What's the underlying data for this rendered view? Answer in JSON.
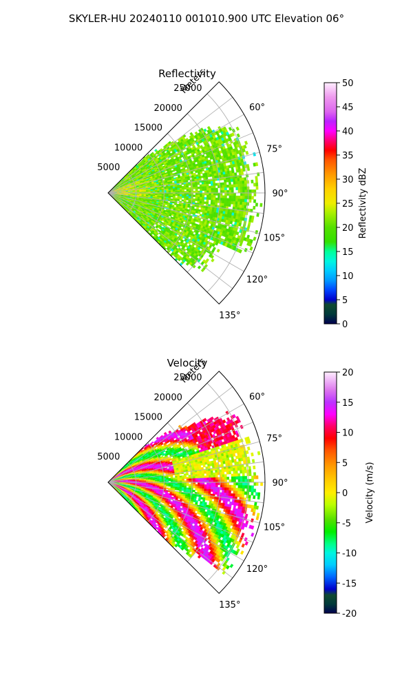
{
  "figure": {
    "title": "SKYLER-HU  20240110  001010.900 UTC Elevation 06°"
  },
  "chart_data": [
    {
      "type": "heatmap",
      "projection": "polar-sector",
      "title": "Reflectivity",
      "range_label": "Meters",
      "range_ticks": [
        "5000",
        "10000",
        "15000",
        "20000",
        "25000"
      ],
      "range_tick_values": [
        5000,
        10000,
        15000,
        20000,
        25000
      ],
      "range_max": 28000,
      "azimuth_min": 45,
      "azimuth_max": 135,
      "azimuth_ticks": [
        "60°",
        "75°",
        "90°",
        "105°",
        "120°",
        "135°"
      ],
      "azimuth_tick_values": [
        60,
        75,
        90,
        105,
        120,
        135
      ],
      "grid": true,
      "colorbar": {
        "label": "Reflectivity dBZ",
        "min": 0,
        "max": 50,
        "ticks": [
          "0",
          "5",
          "10",
          "15",
          "20",
          "25",
          "30",
          "35",
          "40",
          "45",
          "50"
        ],
        "tick_values": [
          0,
          5,
          10,
          15,
          20,
          25,
          30,
          35,
          40,
          45,
          50
        ]
      },
      "field_description": "Weak echoes mostly 18-24 dBZ (green) filling most of the sector to ~25 km; stronger 25-30 dBZ (yellow) near the radar along 75-95°; cyan speckle (10-15 dBZ) at the edges."
    },
    {
      "type": "heatmap",
      "projection": "polar-sector",
      "title": "Velocity",
      "range_label": "Meters",
      "range_ticks": [
        "5000",
        "10000",
        "15000",
        "20000",
        "25000"
      ],
      "range_tick_values": [
        5000,
        10000,
        15000,
        20000,
        25000
      ],
      "range_max": 28000,
      "azimuth_min": 45,
      "azimuth_max": 135,
      "azimuth_ticks": [
        "60°",
        "75°",
        "90°",
        "105°",
        "120°",
        "135°"
      ],
      "azimuth_tick_values": [
        60,
        75,
        90,
        105,
        120,
        135
      ],
      "grid": true,
      "colorbar": {
        "label": "Velocity (m/s)",
        "min": -20,
        "max": 20,
        "ticks": [
          "-20",
          "-15",
          "-10",
          "-5",
          "0",
          "5",
          "10",
          "15",
          "20"
        ],
        "tick_values": [
          -20,
          -15,
          -10,
          -5,
          0,
          5,
          10,
          15,
          20
        ]
      },
      "field_description": "Curved bands alternating between +10 to +15 m/s (red/magenta) and -5 to -10 m/s (green/cyan) spiraling outward; yellow near 0 m/s at the far edges and 75° region; isolated red/orange echoes near 65-80° at 20-25 km."
    }
  ],
  "colors": {
    "grid": "#b0b0b0",
    "frame": "#000000"
  }
}
